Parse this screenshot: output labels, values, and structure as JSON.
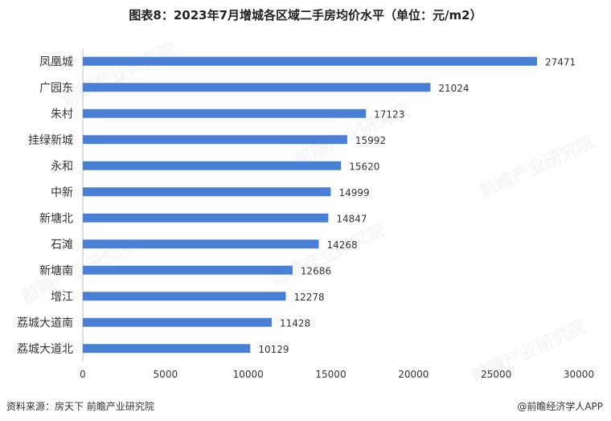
{
  "title": "图表8：2023年7月增城各区域二手房均价水平（单位：元/m2）",
  "footer": {
    "source": "资料来源：房天下 前瞻产业研究院",
    "brand": "@前瞻经济学人APP"
  },
  "watermark": "前瞻产业研究院",
  "colors": {
    "bar": "#4a7fd6",
    "axis": "#bfbfbf"
  },
  "chart_data": {
    "type": "bar",
    "orientation": "horizontal",
    "categories": [
      "凤凰城",
      "广园东",
      "朱村",
      "挂绿新城",
      "永和",
      "中新",
      "新塘北",
      "石滩",
      "新塘南",
      "增江",
      "荔城大道南",
      "荔城大道北"
    ],
    "values": [
      27471,
      21024,
      17123,
      15992,
      15620,
      14999,
      14847,
      14268,
      12686,
      12278,
      11428,
      10129
    ],
    "xlim": [
      0,
      30000
    ],
    "xticks": [
      0,
      5000,
      10000,
      15000,
      20000,
      25000,
      30000
    ],
    "grid": false,
    "legend": "none"
  }
}
